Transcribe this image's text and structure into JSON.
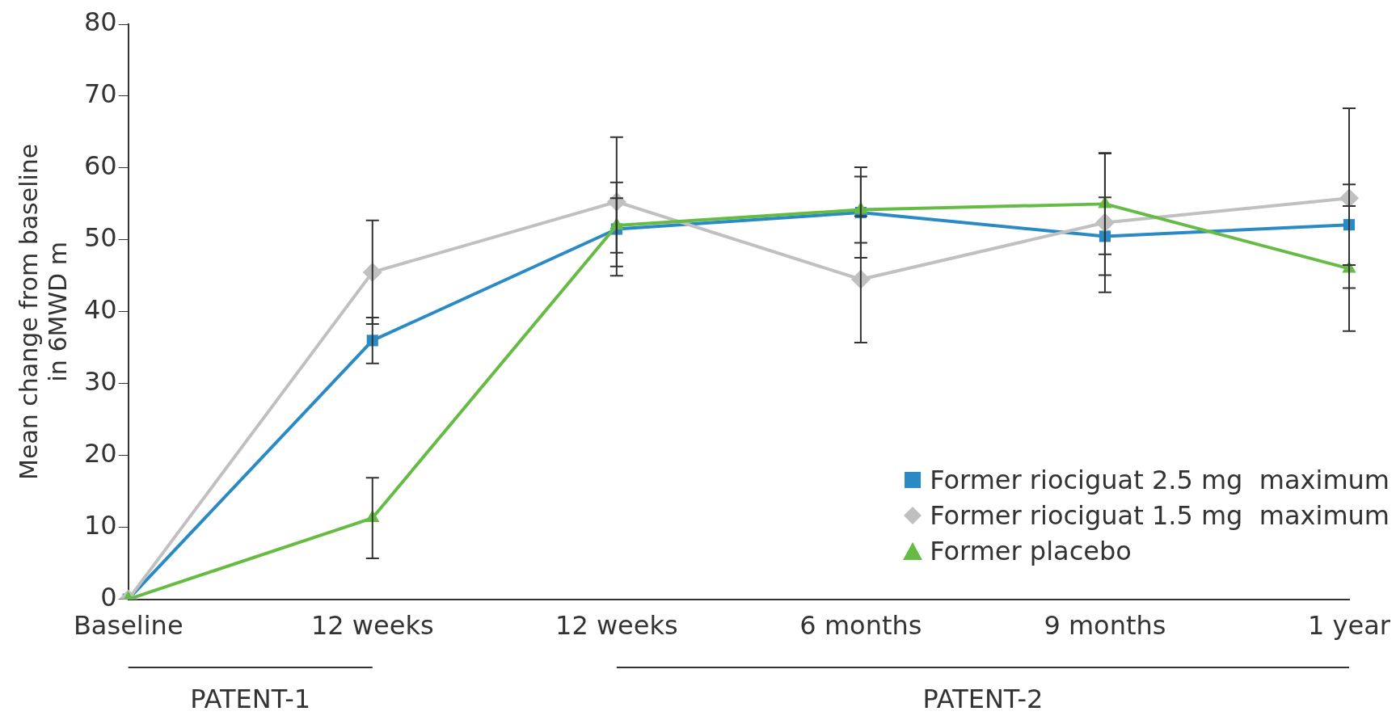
{
  "chart_data": {
    "type": "line",
    "ylabel": "Mean change from baseline in 6MWD m",
    "categories": [
      "Baseline",
      "12 weeks",
      "12 weeks",
      "6 months",
      "9 months",
      "1 year"
    ],
    "ylim": [
      0,
      80
    ],
    "yticks": [
      0,
      10,
      20,
      30,
      40,
      50,
      60,
      70,
      80
    ],
    "grid": false,
    "legend": "bottom right",
    "line_style": "solid",
    "series": [
      {
        "name": "Former riociguat 2.5 mg  maximum",
        "color": "#2a8ac6",
        "marker": "square",
        "values": [
          0,
          36,
          51.5,
          53.8,
          50.5,
          52.1
        ],
        "errors": [
          null,
          3.2,
          6.5,
          6.3,
          5.4,
          5.6
        ]
      },
      {
        "name": "Former riociguat 1.5 mg  maximum",
        "color": "#c0c0c0",
        "marker": "diamond",
        "values": [
          0,
          45.5,
          55.3,
          44.5,
          52.4,
          55.8
        ],
        "errors": [
          null,
          7.2,
          9,
          8.8,
          9.7,
          12.5
        ]
      },
      {
        "name": "Former placebo",
        "color": "#66bb44",
        "marker": "triangle",
        "values": [
          0,
          11.3,
          52,
          54.2,
          55,
          46
        ],
        "errors": [
          null,
          5.6,
          3.8,
          4.6,
          7,
          8.7
        ]
      }
    ],
    "annotations": [
      "PATENT-1",
      "PATENT-2"
    ]
  }
}
